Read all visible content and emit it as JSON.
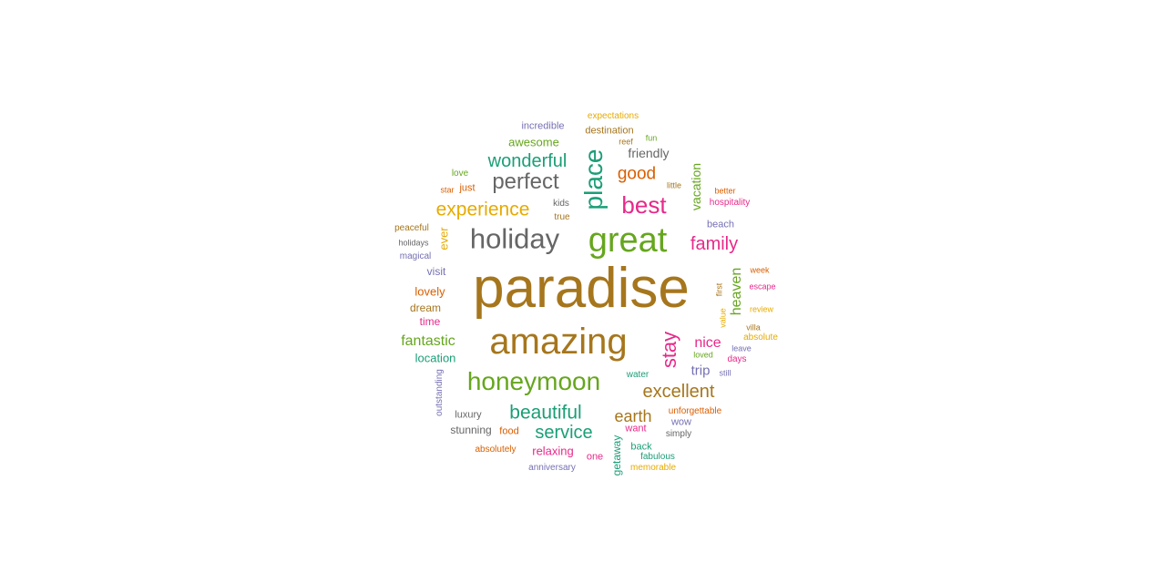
{
  "colors": {
    "teal": "#1b9e77",
    "orange": "#d95f02",
    "purple": "#7570b3",
    "magenta": "#e7298a",
    "green": "#66a61e",
    "gold": "#e6ab02",
    "brown": "#a6761d",
    "gray": "#666666"
  },
  "words": [
    {
      "text": "paradise",
      "color": "brown"
    },
    {
      "text": "great",
      "color": "green"
    },
    {
      "text": "amazing",
      "color": "brown"
    },
    {
      "text": "holiday",
      "color": "gray"
    },
    {
      "text": "place",
      "color": "teal"
    },
    {
      "text": "honeymoon",
      "color": "green"
    },
    {
      "text": "best",
      "color": "magenta"
    },
    {
      "text": "perfect",
      "color": "gray"
    },
    {
      "text": "experience",
      "color": "gold"
    },
    {
      "text": "wonderful",
      "color": "teal"
    },
    {
      "text": "stay",
      "color": "magenta"
    },
    {
      "text": "beautiful",
      "color": "teal"
    },
    {
      "text": "excellent",
      "color": "brown"
    },
    {
      "text": "service",
      "color": "teal"
    },
    {
      "text": "family",
      "color": "magenta"
    },
    {
      "text": "good",
      "color": "orange"
    },
    {
      "text": "earth",
      "color": "brown"
    },
    {
      "text": "fantastic",
      "color": "green"
    },
    {
      "text": "vacation",
      "color": "green"
    },
    {
      "text": "heaven",
      "color": "green"
    },
    {
      "text": "nice",
      "color": "magenta"
    },
    {
      "text": "trip",
      "color": "purple"
    },
    {
      "text": "friendly",
      "color": "gray"
    },
    {
      "text": "awesome",
      "color": "green"
    },
    {
      "text": "relaxing",
      "color": "magenta"
    },
    {
      "text": "lovely",
      "color": "orange"
    },
    {
      "text": "location",
      "color": "teal"
    },
    {
      "text": "incredible",
      "color": "purple"
    },
    {
      "text": "destination",
      "color": "brown"
    },
    {
      "text": "ever",
      "color": "gold"
    },
    {
      "text": "visit",
      "color": "purple"
    },
    {
      "text": "time",
      "color": "magenta"
    },
    {
      "text": "dream",
      "color": "brown"
    },
    {
      "text": "getaway",
      "color": "teal"
    },
    {
      "text": "stunning",
      "color": "gray"
    },
    {
      "text": "luxury",
      "color": "gray"
    },
    {
      "text": "food",
      "color": "orange"
    },
    {
      "text": "want",
      "color": "magenta"
    },
    {
      "text": "back",
      "color": "teal"
    },
    {
      "text": "wow",
      "color": "purple"
    },
    {
      "text": "one",
      "color": "magenta"
    },
    {
      "text": "beach",
      "color": "purple"
    },
    {
      "text": "outstanding",
      "color": "purple"
    },
    {
      "text": "absolutely",
      "color": "orange"
    },
    {
      "text": "anniversary",
      "color": "purple"
    },
    {
      "text": "fabulous",
      "color": "teal"
    },
    {
      "text": "memorable",
      "color": "gold"
    },
    {
      "text": "simply",
      "color": "gray"
    },
    {
      "text": "unforgettable",
      "color": "orange"
    },
    {
      "text": "water",
      "color": "teal"
    },
    {
      "text": "kids",
      "color": "gray"
    },
    {
      "text": "true",
      "color": "brown"
    },
    {
      "text": "just",
      "color": "orange"
    },
    {
      "text": "love",
      "color": "green"
    },
    {
      "text": "star",
      "color": "orange"
    },
    {
      "text": "expectations",
      "color": "gold"
    },
    {
      "text": "reef",
      "color": "brown"
    },
    {
      "text": "fun",
      "color": "green"
    },
    {
      "text": "little",
      "color": "brown"
    },
    {
      "text": "better",
      "color": "orange"
    },
    {
      "text": "hospitality",
      "color": "magenta"
    },
    {
      "text": "peaceful",
      "color": "brown"
    },
    {
      "text": "holidays",
      "color": "gray"
    },
    {
      "text": "magical",
      "color": "purple"
    },
    {
      "text": "first",
      "color": "brown"
    },
    {
      "text": "value",
      "color": "gold"
    },
    {
      "text": "loved",
      "color": "green"
    },
    {
      "text": "still",
      "color": "purple"
    },
    {
      "text": "week",
      "color": "orange"
    },
    {
      "text": "escape",
      "color": "magenta"
    },
    {
      "text": "review",
      "color": "gold"
    },
    {
      "text": "villa",
      "color": "brown"
    },
    {
      "text": "absolute",
      "color": "gold"
    },
    {
      "text": "leave",
      "color": "purple"
    },
    {
      "text": "days",
      "color": "magenta"
    }
  ]
}
